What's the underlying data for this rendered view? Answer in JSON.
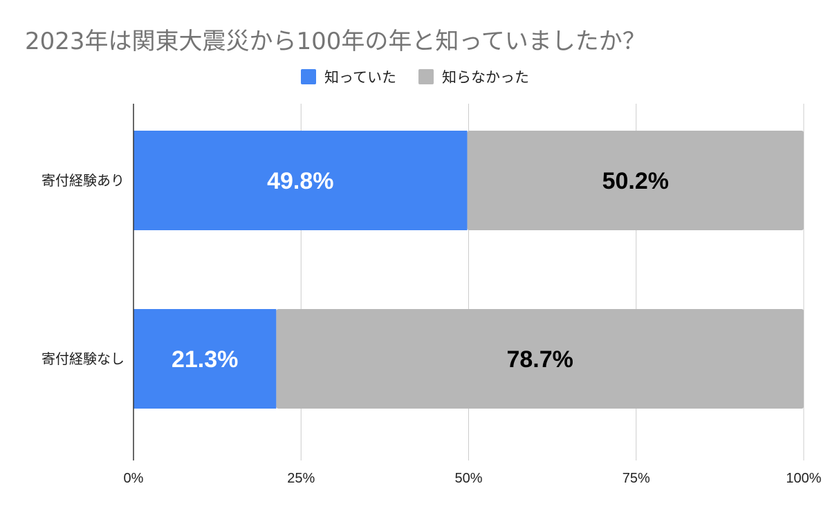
{
  "chart_data": {
    "type": "bar",
    "orientation": "horizontal",
    "stacked": true,
    "percent_stacked": true,
    "title": "2023年は関東大震災から100年の年と知っていましたか？",
    "categories": [
      "寄付経験あり",
      "寄付経験なし"
    ],
    "series": [
      {
        "name": "知っていた",
        "values": [
          49.8,
          21.3
        ],
        "color": "#4285F4",
        "label_color": "#ffffff",
        "labels": [
          "49.8%",
          "21.3%"
        ]
      },
      {
        "name": "知らなかった",
        "values": [
          50.2,
          78.7
        ],
        "color": "#B7B7B7",
        "label_color": "#000000",
        "labels": [
          "50.2%",
          "78.7%"
        ]
      }
    ],
    "xlim": [
      0,
      100
    ],
    "xticks": [
      0,
      25,
      50,
      75,
      100
    ],
    "xtick_labels": [
      "0%",
      "25%",
      "50%",
      "75%",
      "100%"
    ],
    "grid": true,
    "legend_position": "top-center"
  }
}
